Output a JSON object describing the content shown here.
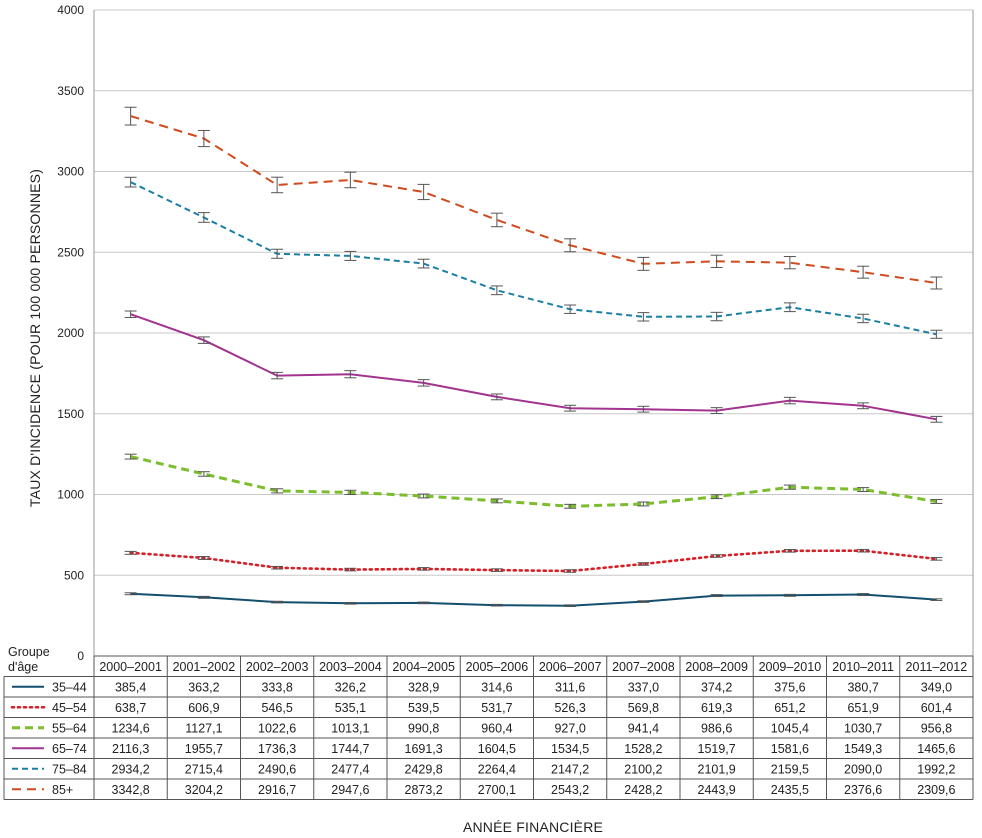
{
  "chart_data": {
    "type": "line",
    "xlabel": "ANNÉE FINANCIÈRE",
    "ylabel": "TAUX D'INCIDENCE (POUR 100 000 PERSONNES)",
    "ylim": [
      0,
      4000
    ],
    "yticks": [
      0,
      500,
      1000,
      1500,
      2000,
      2500,
      3000,
      3500,
      4000
    ],
    "grid": true,
    "legend_header": [
      "Groupe",
      "d'âge"
    ],
    "categories": [
      "2000–2001",
      "2001–2002",
      "2002–2003",
      "2003–2004",
      "2004–2005",
      "2005–2006",
      "2006–2007",
      "2007–2008",
      "2008–2009",
      "2009–2010",
      "2010–2011",
      "2011–2012"
    ],
    "series": [
      {
        "name": "35–44",
        "color": "#12506e",
        "style": "solid",
        "values": [
          385.4,
          363.2,
          333.8,
          326.2,
          328.9,
          314.6,
          311.6,
          337.0,
          374.2,
          375.6,
          380.7,
          349.0
        ],
        "labels": [
          "385,4",
          "363,2",
          "333,8",
          "326,2",
          "328,9",
          "314,6",
          "311,6",
          "337,0",
          "374,2",
          "375,6",
          "380,7",
          "349,0"
        ],
        "err": [
          6,
          6,
          5,
          5,
          5,
          5,
          5,
          5,
          6,
          6,
          6,
          5
        ]
      },
      {
        "name": "45–54",
        "color": "#d42027",
        "style": "dotted",
        "values": [
          638.7,
          606.9,
          546.5,
          535.1,
          539.5,
          531.7,
          526.3,
          569.8,
          619.3,
          651.2,
          651.9,
          601.4
        ],
        "labels": [
          "638,7",
          "606,9",
          "546,5",
          "535,1",
          "539,5",
          "531,7",
          "526,3",
          "569,8",
          "619,3",
          "651,2",
          "651,9",
          "601,4"
        ],
        "err": [
          9,
          9,
          8,
          8,
          8,
          8,
          8,
          8,
          8,
          8,
          8,
          8
        ]
      },
      {
        "name": "55–64",
        "color": "#7cbd2e",
        "style": "dashed-thick",
        "values": [
          1234.6,
          1127.1,
          1022.6,
          1013.1,
          990.8,
          960.4,
          927.0,
          941.4,
          986.6,
          1045.4,
          1030.7,
          956.8
        ],
        "labels": [
          "1234,6",
          "1127,1",
          "1022,6",
          "1013,1",
          "990,8",
          "960,4",
          "927,0",
          "941,4",
          "986,6",
          "1045,4",
          "1030,7",
          "956,8"
        ],
        "err": [
          15,
          14,
          13,
          13,
          12,
          12,
          12,
          12,
          12,
          13,
          12,
          12
        ]
      },
      {
        "name": "65–74",
        "color": "#a2338f",
        "style": "solid",
        "values": [
          2116.3,
          1955.7,
          1736.3,
          1744.7,
          1691.3,
          1604.5,
          1534.5,
          1528.2,
          1519.7,
          1581.6,
          1549.3,
          1465.6
        ],
        "labels": [
          "2116,3",
          "1955,7",
          "1736,3",
          "1744,7",
          "1691,3",
          "1604,5",
          "1534,5",
          "1528,2",
          "1519,7",
          "1581,6",
          "1549,3",
          "1465,6"
        ],
        "err": [
          20,
          20,
          20,
          22,
          20,
          18,
          18,
          18,
          18,
          20,
          18,
          18
        ]
      },
      {
        "name": "75–84",
        "color": "#1b7fa5",
        "style": "dashed",
        "values": [
          2934.2,
          2715.4,
          2490.6,
          2477.4,
          2429.8,
          2264.4,
          2147.2,
          2100.2,
          2101.9,
          2159.5,
          2090.0,
          1992.2
        ],
        "labels": [
          "2934,2",
          "2715,4",
          "2490,6",
          "2477,4",
          "2429,8",
          "2264,4",
          "2147,2",
          "2100,2",
          "2101,9",
          "2159,5",
          "2090,0",
          "1992,2"
        ],
        "err": [
          30,
          30,
          28,
          28,
          27,
          27,
          26,
          26,
          26,
          27,
          26,
          25
        ]
      },
      {
        "name": "85+",
        "color": "#cf4a1e",
        "style": "dashed-long",
        "values": [
          3342.8,
          3204.2,
          2916.7,
          2947.6,
          2873.2,
          2700.1,
          2543.2,
          2428.2,
          2443.9,
          2435.5,
          2376.6,
          2309.6
        ],
        "labels": [
          "3342,8",
          "3204,2",
          "2916,7",
          "2947,6",
          "2873,2",
          "2700,1",
          "2543,2",
          "2428,2",
          "2443,9",
          "2435,5",
          "2376,6",
          "2309,6"
        ],
        "err": [
          55,
          50,
          48,
          48,
          47,
          42,
          40,
          40,
          38,
          38,
          37,
          37
        ]
      }
    ]
  }
}
